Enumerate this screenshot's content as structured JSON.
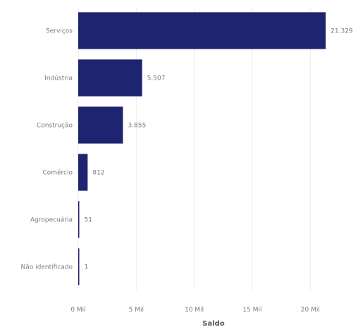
{
  "chart_data": {
    "type": "bar",
    "orientation": "horizontal",
    "categories": [
      "Serviços",
      "Indústria",
      "Construção",
      "Comércio",
      "Agropecuária",
      "Não identificado"
    ],
    "values": [
      21329,
      5507,
      3855,
      812,
      51,
      1
    ],
    "data_labels": [
      "21.329",
      "5.507",
      "3.855",
      "812",
      "51",
      "1"
    ],
    "xlabel": "Saldo",
    "ylabel": "",
    "xlim": [
      0,
      21500
    ],
    "xticks": [
      0,
      5000,
      10000,
      15000,
      20000
    ],
    "xtick_labels": [
      "0 Mil",
      "5 Mil",
      "10 Mil",
      "15 Mil",
      "20 Mil"
    ],
    "grid": true,
    "legend": "none",
    "colors": {
      "bar": "#1f2470"
    }
  }
}
